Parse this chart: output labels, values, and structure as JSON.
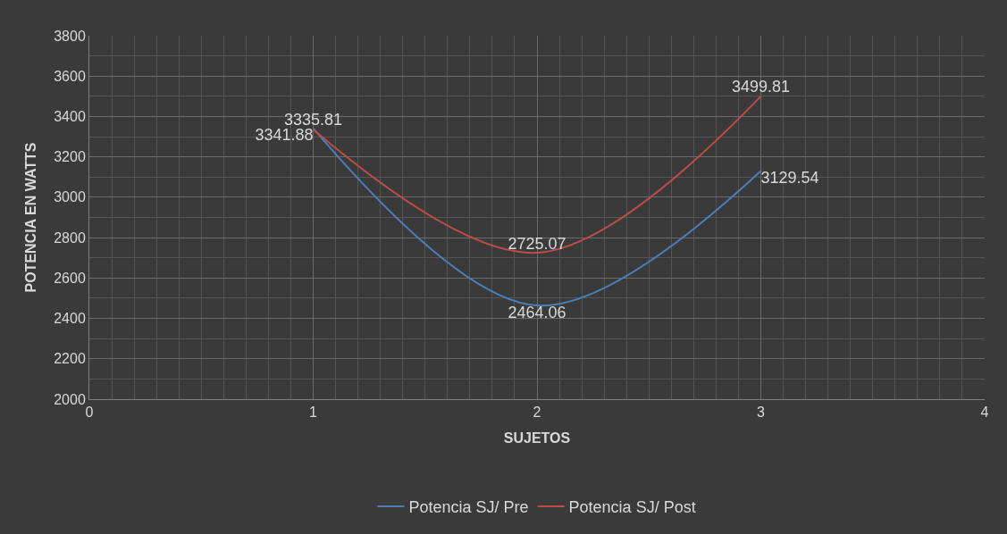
{
  "chart_data": {
    "type": "line",
    "xlabel": "SUJETOS",
    "ylabel": "POTENCIA EN WATTS",
    "x": [
      1,
      2,
      3
    ],
    "series": [
      {
        "name": "Potencia SJ/ Pre",
        "color": "#4a7ebb",
        "values": [
          3341.88,
          2464.06,
          3129.54
        ]
      },
      {
        "name": "Potencia SJ/ Post",
        "color": "#be4b48",
        "values": [
          3335.81,
          2725.07,
          3499.81
        ]
      }
    ],
    "xlim": [
      0,
      4
    ],
    "xticks": [
      0,
      1,
      2,
      3,
      4
    ],
    "ylim": [
      2000,
      3800
    ],
    "yticks": [
      2000,
      2200,
      2400,
      2600,
      2800,
      3000,
      3200,
      3400,
      3600,
      3800
    ],
    "grid": true,
    "legend": "bottom",
    "data_labels": true,
    "marker": "none",
    "line_style": "solid"
  }
}
